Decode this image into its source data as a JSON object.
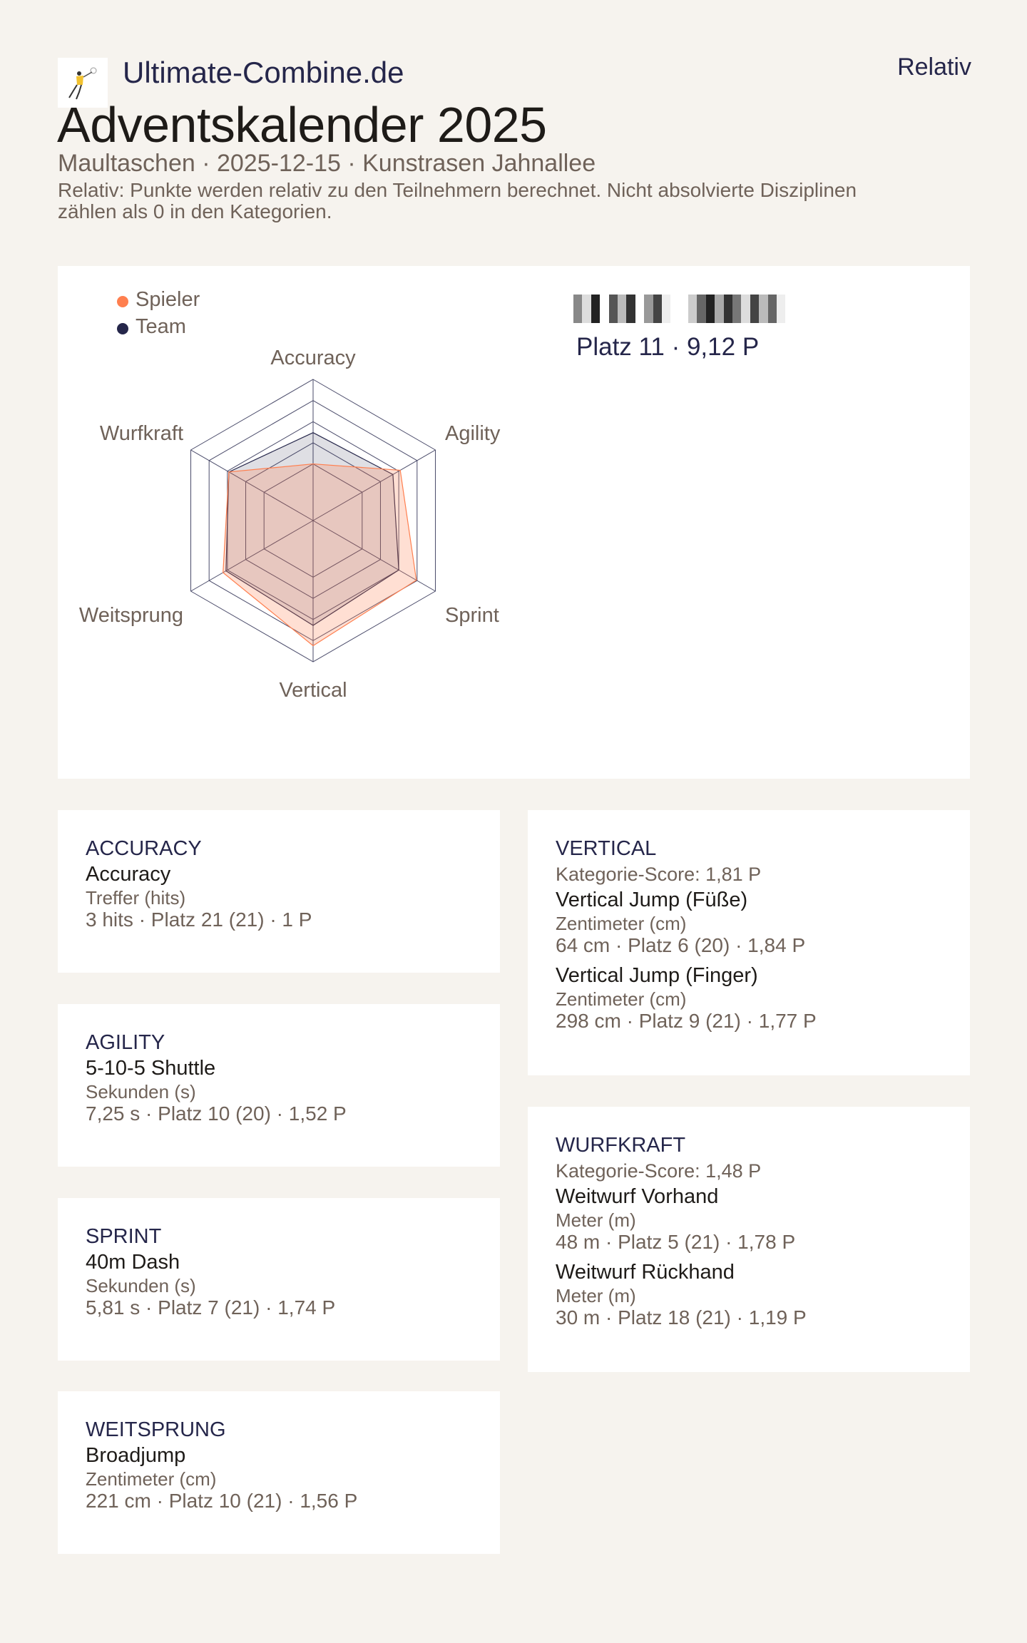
{
  "header": {
    "site_name": "Ultimate-Combine.de",
    "logo_icon": "ultimate-player-jumping-logo",
    "mode": "Relativ",
    "title": "Adventskalender 2025",
    "subtitle": "Maultaschen · 2025-12-15 · Kunstrasen Jahnallee",
    "description": "Relativ: Punkte werden relativ zu den Teilnehmern berechnet. Nicht absolvierte Disziplinen zählen als 0 in den Kategorien."
  },
  "player": {
    "name_redacted": true,
    "rank_line": "Platz 11 · 9,12 P"
  },
  "colors": {
    "player": "#ff7f4f",
    "team": "#25264a",
    "background": "#f6f3ee"
  },
  "chart_data": {
    "type": "radar",
    "axes": [
      "Accuracy",
      "Agility",
      "Sprint",
      "Vertical",
      "Weitsprung",
      "Wurfkraft"
    ],
    "series": [
      {
        "name": "Spieler",
        "values": [
          1.0,
          1.52,
          1.74,
          1.81,
          1.56,
          1.48
        ]
      },
      {
        "name": "Team",
        "values": [
          1.37,
          1.42,
          1.5,
          1.57,
          1.52,
          1.48
        ]
      }
    ],
    "r_range": [
      0.33,
      2.0
    ],
    "rings": [
      1.0,
      1.25,
      1.5,
      1.75,
      2.0
    ],
    "legend_placement": "top-left",
    "grid": true
  },
  "categories": [
    {
      "name": "ACCURACY",
      "disciplines": [
        {
          "name": "Accuracy",
          "unit": "Treffer (hits)",
          "result": "3 hits · Platz 21 (21) · 1 P"
        }
      ]
    },
    {
      "name": "AGILITY",
      "disciplines": [
        {
          "name": "5-10-5 Shuttle",
          "unit": "Sekunden (s)",
          "result": "7,25 s · Platz 10 (20) · 1,52 P"
        }
      ]
    },
    {
      "name": "SPRINT",
      "disciplines": [
        {
          "name": "40m Dash",
          "unit": "Sekunden (s)",
          "result": "5,81 s · Platz 7 (21) · 1,74 P"
        }
      ]
    },
    {
      "name": "WEITSPRUNG",
      "disciplines": [
        {
          "name": "Broadjump",
          "unit": "Zentimeter (cm)",
          "result": "221 cm · Platz 10 (21) · 1,56 P"
        }
      ]
    },
    {
      "name": "VERTICAL",
      "score": "Kategorie-Score: 1,81 P",
      "disciplines": [
        {
          "name": "Vertical Jump (Füße)",
          "unit": "Zentimeter (cm)",
          "result": "64 cm · Platz 6 (20) · 1,84 P"
        },
        {
          "name": "Vertical Jump (Finger)",
          "unit": "Zentimeter (cm)",
          "result": "298 cm · Platz 9 (21) · 1,77 P"
        }
      ]
    },
    {
      "name": "WURFKRAFT",
      "score": "Kategorie-Score: 1,48 P",
      "disciplines": [
        {
          "name": "Weitwurf Vorhand",
          "unit": "Meter (m)",
          "result": "48 m · Platz 5 (21) · 1,78 P"
        },
        {
          "name": "Weitwurf Rückhand",
          "unit": "Meter (m)",
          "result": "30 m · Platz 18 (21) · 1,19 P"
        }
      ]
    }
  ]
}
